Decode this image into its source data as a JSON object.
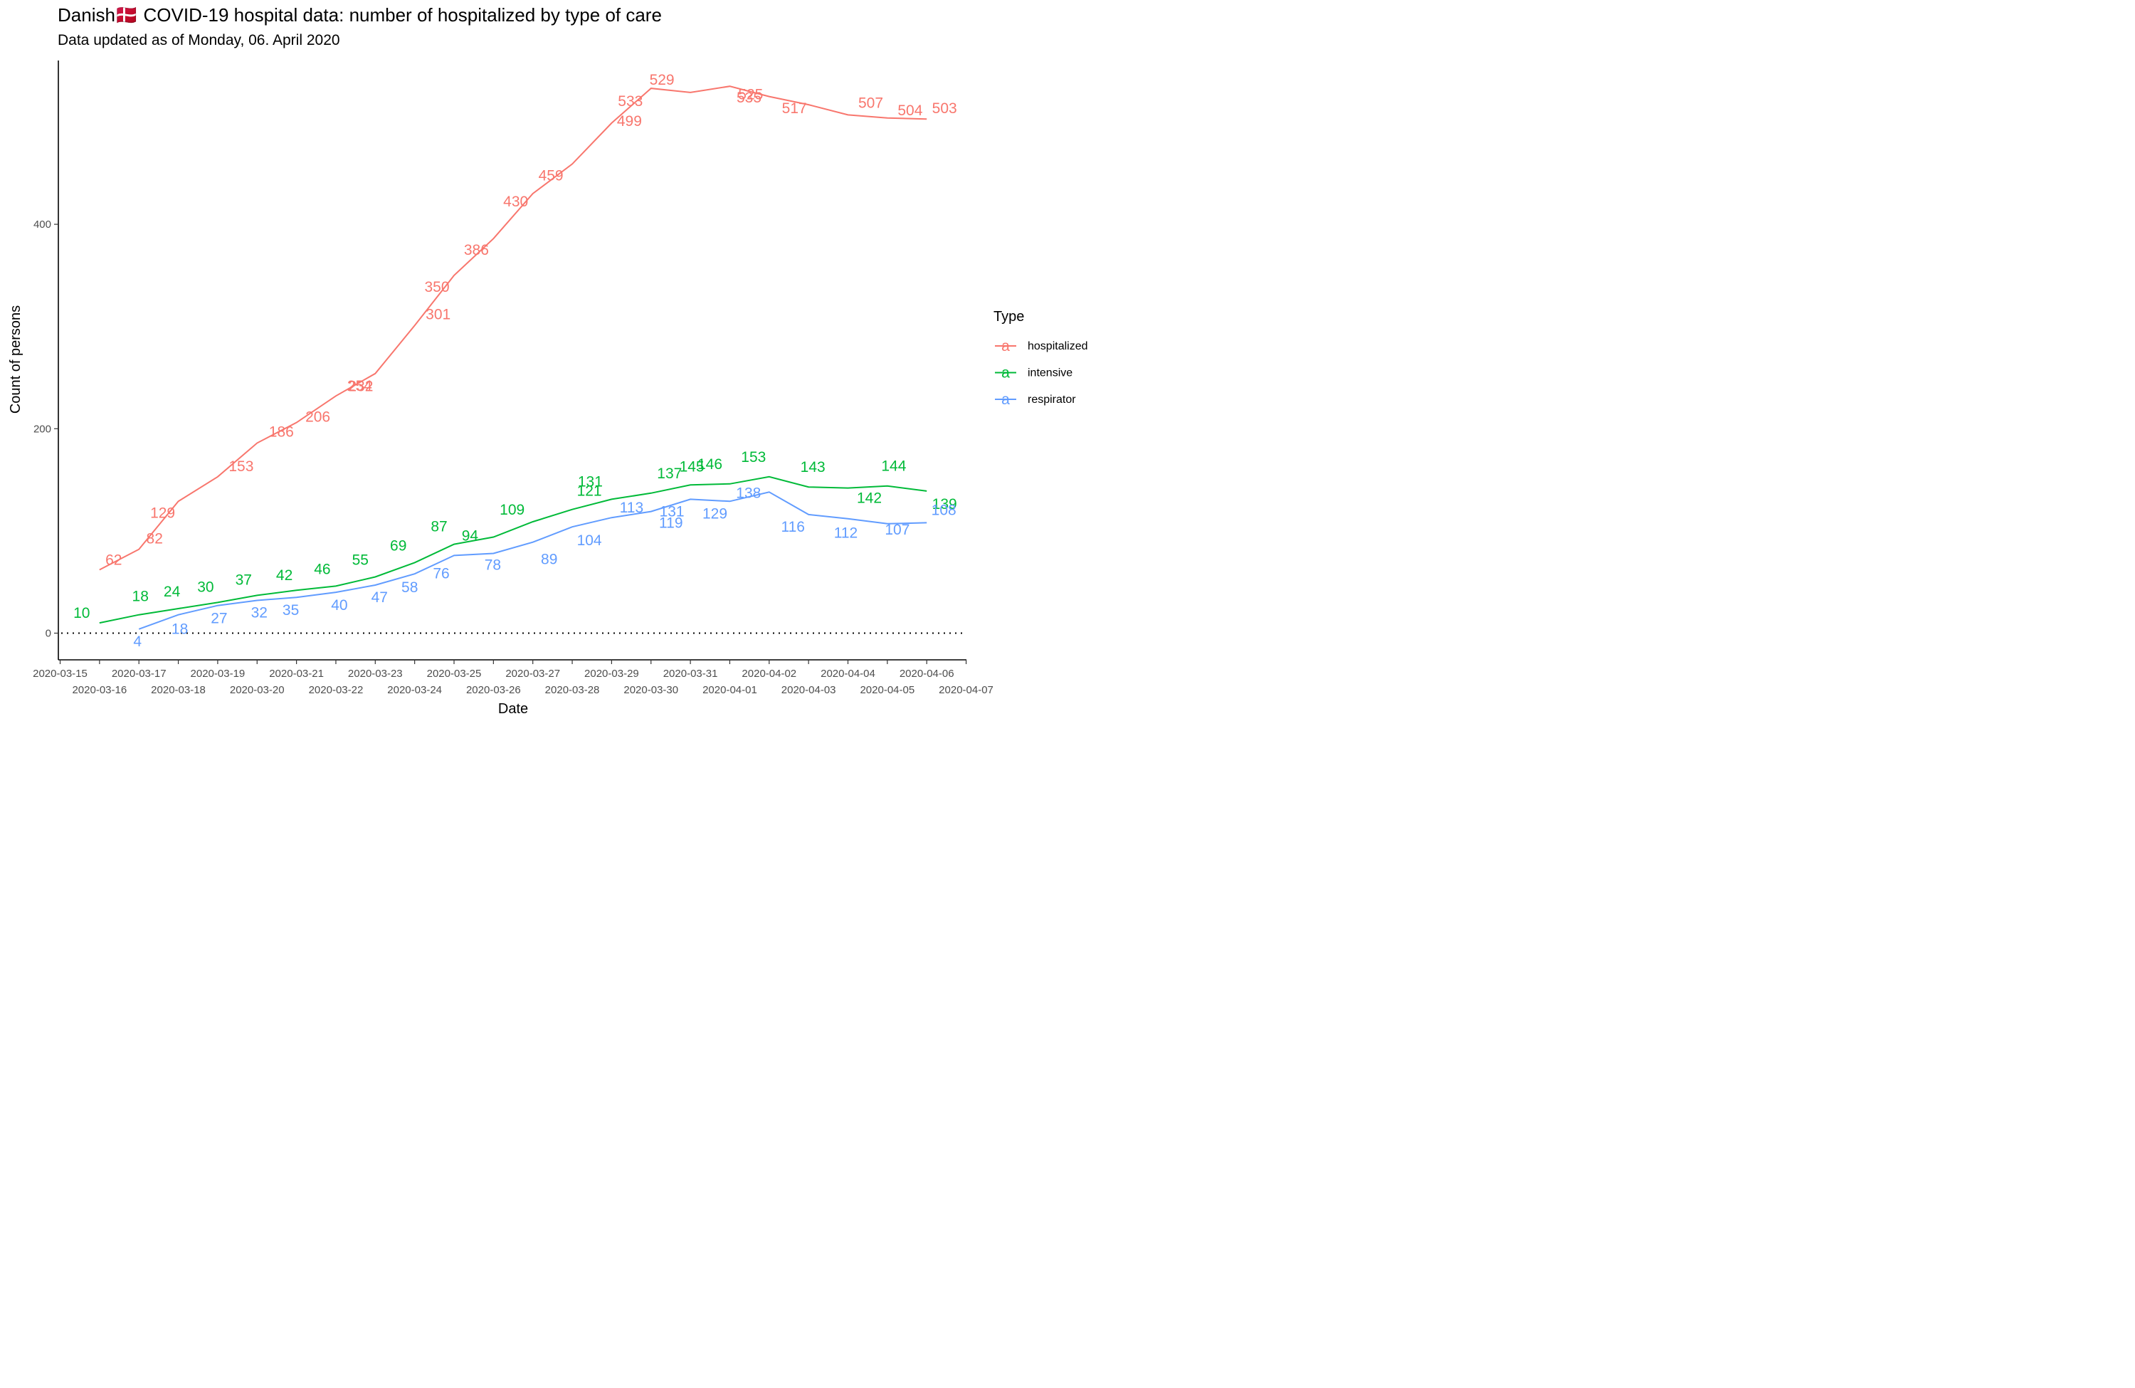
{
  "header": {
    "title": "Danish🇩🇰 COVID-19 hospital data: number of hospitalized by type of care",
    "subtitle": "Data updated as of Monday, 06. April 2020"
  },
  "chart_data": {
    "type": "line",
    "title": "Danish🇩🇰 COVID-19 hospital data: number of hospitalized by type of care",
    "subtitle": "Data updated as of Monday, 06. April 2020",
    "xlabel": "Date",
    "ylabel": "Count of persons",
    "x_range": [
      "2020-03-15",
      "2020-04-07"
    ],
    "ylim": [
      -40,
      560
    ],
    "y_ticks": [
      0,
      200,
      400
    ],
    "x_ticks": [
      "2020-03-15",
      "2020-03-16",
      "2020-03-17",
      "2020-03-18",
      "2020-03-19",
      "2020-03-20",
      "2020-03-21",
      "2020-03-22",
      "2020-03-23",
      "2020-03-24",
      "2020-03-25",
      "2020-03-26",
      "2020-03-27",
      "2020-03-28",
      "2020-03-29",
      "2020-03-30",
      "2020-03-31",
      "2020-04-01",
      "2020-04-02",
      "2020-04-03",
      "2020-04-04",
      "2020-04-05",
      "2020-04-06",
      "2020-04-07"
    ],
    "zero_line": "dotted",
    "grid": false,
    "legend": {
      "title": "Type",
      "position": "right",
      "key_glyph": "a"
    },
    "series": [
      {
        "name": "hospitalized",
        "color": "#F8766D",
        "x": [
          "2020-03-16",
          "2020-03-17",
          "2020-03-18",
          "2020-03-19",
          "2020-03-20",
          "2020-03-21",
          "2020-03-22",
          "2020-03-23",
          "2020-03-24",
          "2020-03-25",
          "2020-03-26",
          "2020-03-27",
          "2020-03-28",
          "2020-03-29",
          "2020-03-30",
          "2020-03-31",
          "2020-04-01",
          "2020-04-02",
          "2020-04-03",
          "2020-04-04",
          "2020-04-05",
          "2020-04-06"
        ],
        "values": [
          62,
          82,
          129,
          153,
          186,
          206,
          232,
          254,
          301,
          350,
          386,
          430,
          459,
          499,
          533,
          529,
          535,
          525,
          517,
          507,
          504,
          503
        ]
      },
      {
        "name": "intensive",
        "color": "#00BA38",
        "x": [
          "2020-03-16",
          "2020-03-17",
          "2020-03-18",
          "2020-03-19",
          "2020-03-20",
          "2020-03-21",
          "2020-03-22",
          "2020-03-23",
          "2020-03-24",
          "2020-03-25",
          "2020-03-26",
          "2020-03-27",
          "2020-03-28",
          "2020-03-29",
          "2020-03-30",
          "2020-03-31",
          "2020-04-01",
          "2020-04-02",
          "2020-04-03",
          "2020-04-04",
          "2020-04-05",
          "2020-04-06"
        ],
        "values": [
          10,
          18,
          24,
          30,
          37,
          42,
          46,
          55,
          69,
          87,
          94,
          109,
          121,
          131,
          137,
          145,
          146,
          153,
          143,
          142,
          144,
          139
        ]
      },
      {
        "name": "respirator",
        "color": "#619CFF",
        "x": [
          "2020-03-17",
          "2020-03-18",
          "2020-03-19",
          "2020-03-20",
          "2020-03-21",
          "2020-03-22",
          "2020-03-23",
          "2020-03-24",
          "2020-03-25",
          "2020-03-26",
          "2020-03-27",
          "2020-03-28",
          "2020-03-29",
          "2020-03-30",
          "2020-03-31",
          "2020-04-01",
          "2020-04-02",
          "2020-04-03",
          "2020-04-04",
          "2020-04-05",
          "2020-04-06"
        ],
        "values": [
          4,
          18,
          27,
          32,
          35,
          40,
          47,
          58,
          76,
          78,
          89,
          104,
          113,
          119,
          131,
          129,
          138,
          116,
          112,
          107,
          108
        ]
      }
    ]
  }
}
